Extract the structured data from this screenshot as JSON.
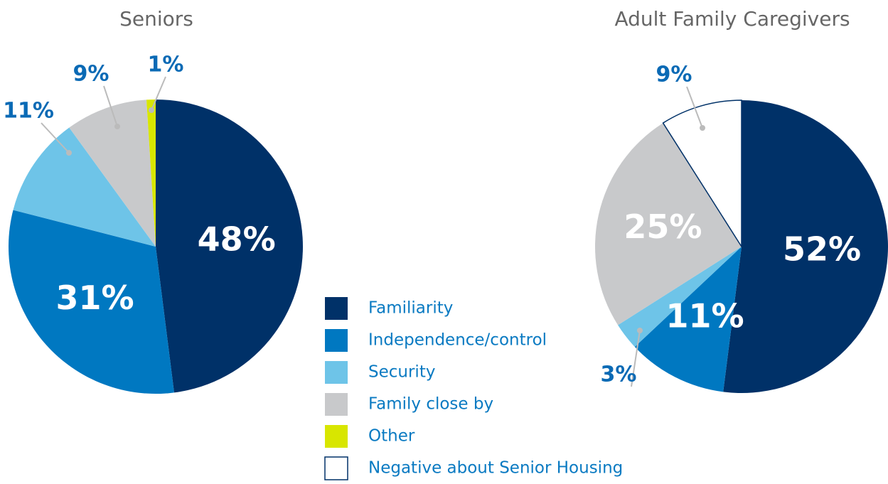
{
  "legend": [
    {
      "name": "Familiarity",
      "color": "#003168"
    },
    {
      "name": "Independence/control",
      "color": "#0078c1"
    },
    {
      "name": "Security",
      "color": "#6ec4e8"
    },
    {
      "name": "Family close by",
      "color": "#c8c9cb"
    },
    {
      "name": "Other",
      "color": "#d8e600"
    },
    {
      "name": "Negative about Senior Housing",
      "color": "#ffffff"
    }
  ],
  "chart_data": [
    {
      "type": "pie",
      "title": "Seniors",
      "categories": [
        "Familiarity",
        "Independence/control",
        "Security",
        "Family close by",
        "Other"
      ],
      "values": [
        48,
        31,
        11,
        9,
        1
      ],
      "value_labels": [
        "48%",
        "31%",
        "11%",
        "9%",
        "1%"
      ]
    },
    {
      "type": "pie",
      "title": "Adult Family Caregivers",
      "categories": [
        "Familiarity",
        "Independence/control",
        "Security",
        "Family close by",
        "Negative about Senior Housing"
      ],
      "values": [
        52,
        11,
        3,
        25,
        9
      ],
      "value_labels": [
        "52%",
        "11%",
        "3%",
        "25%",
        "9%"
      ]
    }
  ]
}
